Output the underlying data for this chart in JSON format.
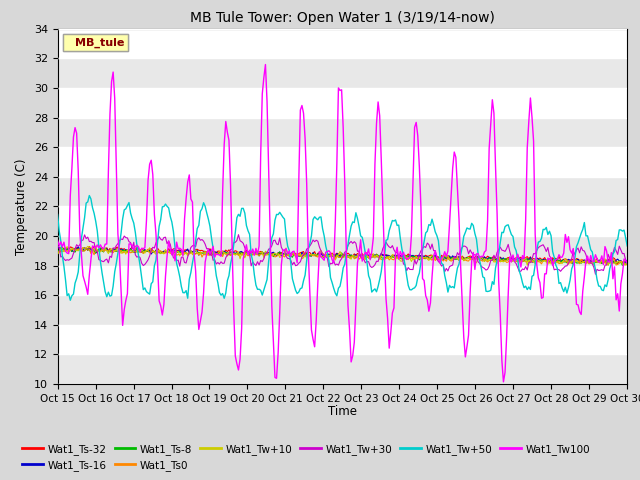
{
  "title": "MB Tule Tower: Open Water 1 (3/19/14-now)",
  "xlabel": "Time",
  "ylabel": "Temperature (C)",
  "ylim": [
    10,
    34
  ],
  "yticks": [
    10,
    12,
    14,
    16,
    18,
    20,
    22,
    24,
    26,
    28,
    30,
    32,
    34
  ],
  "xlim_start": 0,
  "xlim_end": 15,
  "xtick_labels": [
    "Oct 15",
    "Oct 16",
    "Oct 17",
    "Oct 18",
    "Oct 19",
    "Oct 20",
    "Oct 21",
    "Oct 22",
    "Oct 23",
    "Oct 24",
    "Oct 25",
    "Oct 26",
    "Oct 27",
    "Oct 28",
    "Oct 29",
    "Oct 30"
  ],
  "legend_label": "MB_tule",
  "series_colors": {
    "Wat1_Ts-32": "#ff0000",
    "Wat1_Ts-16": "#0000cc",
    "Wat1_Ts-8": "#00bb00",
    "Wat1_Ts0": "#ff8800",
    "Wat1_Tw+10": "#cccc00",
    "Wat1_Tw+30": "#cc00cc",
    "Wat1_Tw+50": "#00cccc",
    "Wat1_Tw100": "#ff00ff"
  },
  "background_color": "#d8d8d8",
  "plot_bg_color": "#ffffff",
  "band_color": "#e8e8e8",
  "grid_color": "#cccccc"
}
